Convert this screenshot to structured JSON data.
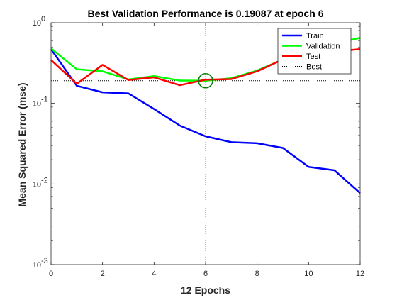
{
  "chart_data": {
    "type": "line",
    "title": "Best Validation Performance is 0.19087 at epoch 6",
    "xlabel": "12 Epochs",
    "ylabel": "Mean Squared Error  (mse)",
    "xlim": [
      0,
      12
    ],
    "ylim": [
      0.001,
      1
    ],
    "yscale": "log",
    "grid": false,
    "legend_position": "top-right",
    "x_ticks": [
      "0",
      "2",
      "4",
      "6",
      "8",
      "10",
      "12"
    ],
    "y_ticks": [
      {
        "value": 1,
        "base": "10",
        "exp": "0"
      },
      {
        "value": 0.1,
        "base": "10",
        "exp": "-1"
      },
      {
        "value": 0.01,
        "base": "10",
        "exp": "-2"
      },
      {
        "value": 0.001,
        "base": "10",
        "exp": "-3"
      }
    ],
    "x": [
      0,
      1,
      2,
      3,
      4,
      5,
      6,
      7,
      8,
      9,
      10,
      11,
      12
    ],
    "series": [
      {
        "name": "Train",
        "color": "#0000ff",
        "values": [
          0.47,
          0.165,
          0.137,
          0.133,
          0.085,
          0.053,
          0.039,
          0.033,
          0.032,
          0.028,
          0.0163,
          0.0148,
          0.0077
        ]
      },
      {
        "name": "Validation",
        "color": "#00ff00",
        "values": [
          0.48,
          0.265,
          0.25,
          0.198,
          0.218,
          0.192,
          0.19087,
          0.205,
          0.255,
          0.35,
          0.46,
          0.55,
          0.65
        ]
      },
      {
        "name": "Test",
        "color": "#ff0000",
        "values": [
          0.345,
          0.175,
          0.3,
          0.195,
          0.21,
          0.168,
          0.197,
          0.2,
          0.25,
          0.35,
          0.45,
          0.44,
          0.47
        ]
      }
    ],
    "best": {
      "name": "Best",
      "epoch": 6,
      "value": 0.19087,
      "color": "#000000",
      "marker_color": "#008000",
      "vline_color": "#70a800"
    }
  }
}
